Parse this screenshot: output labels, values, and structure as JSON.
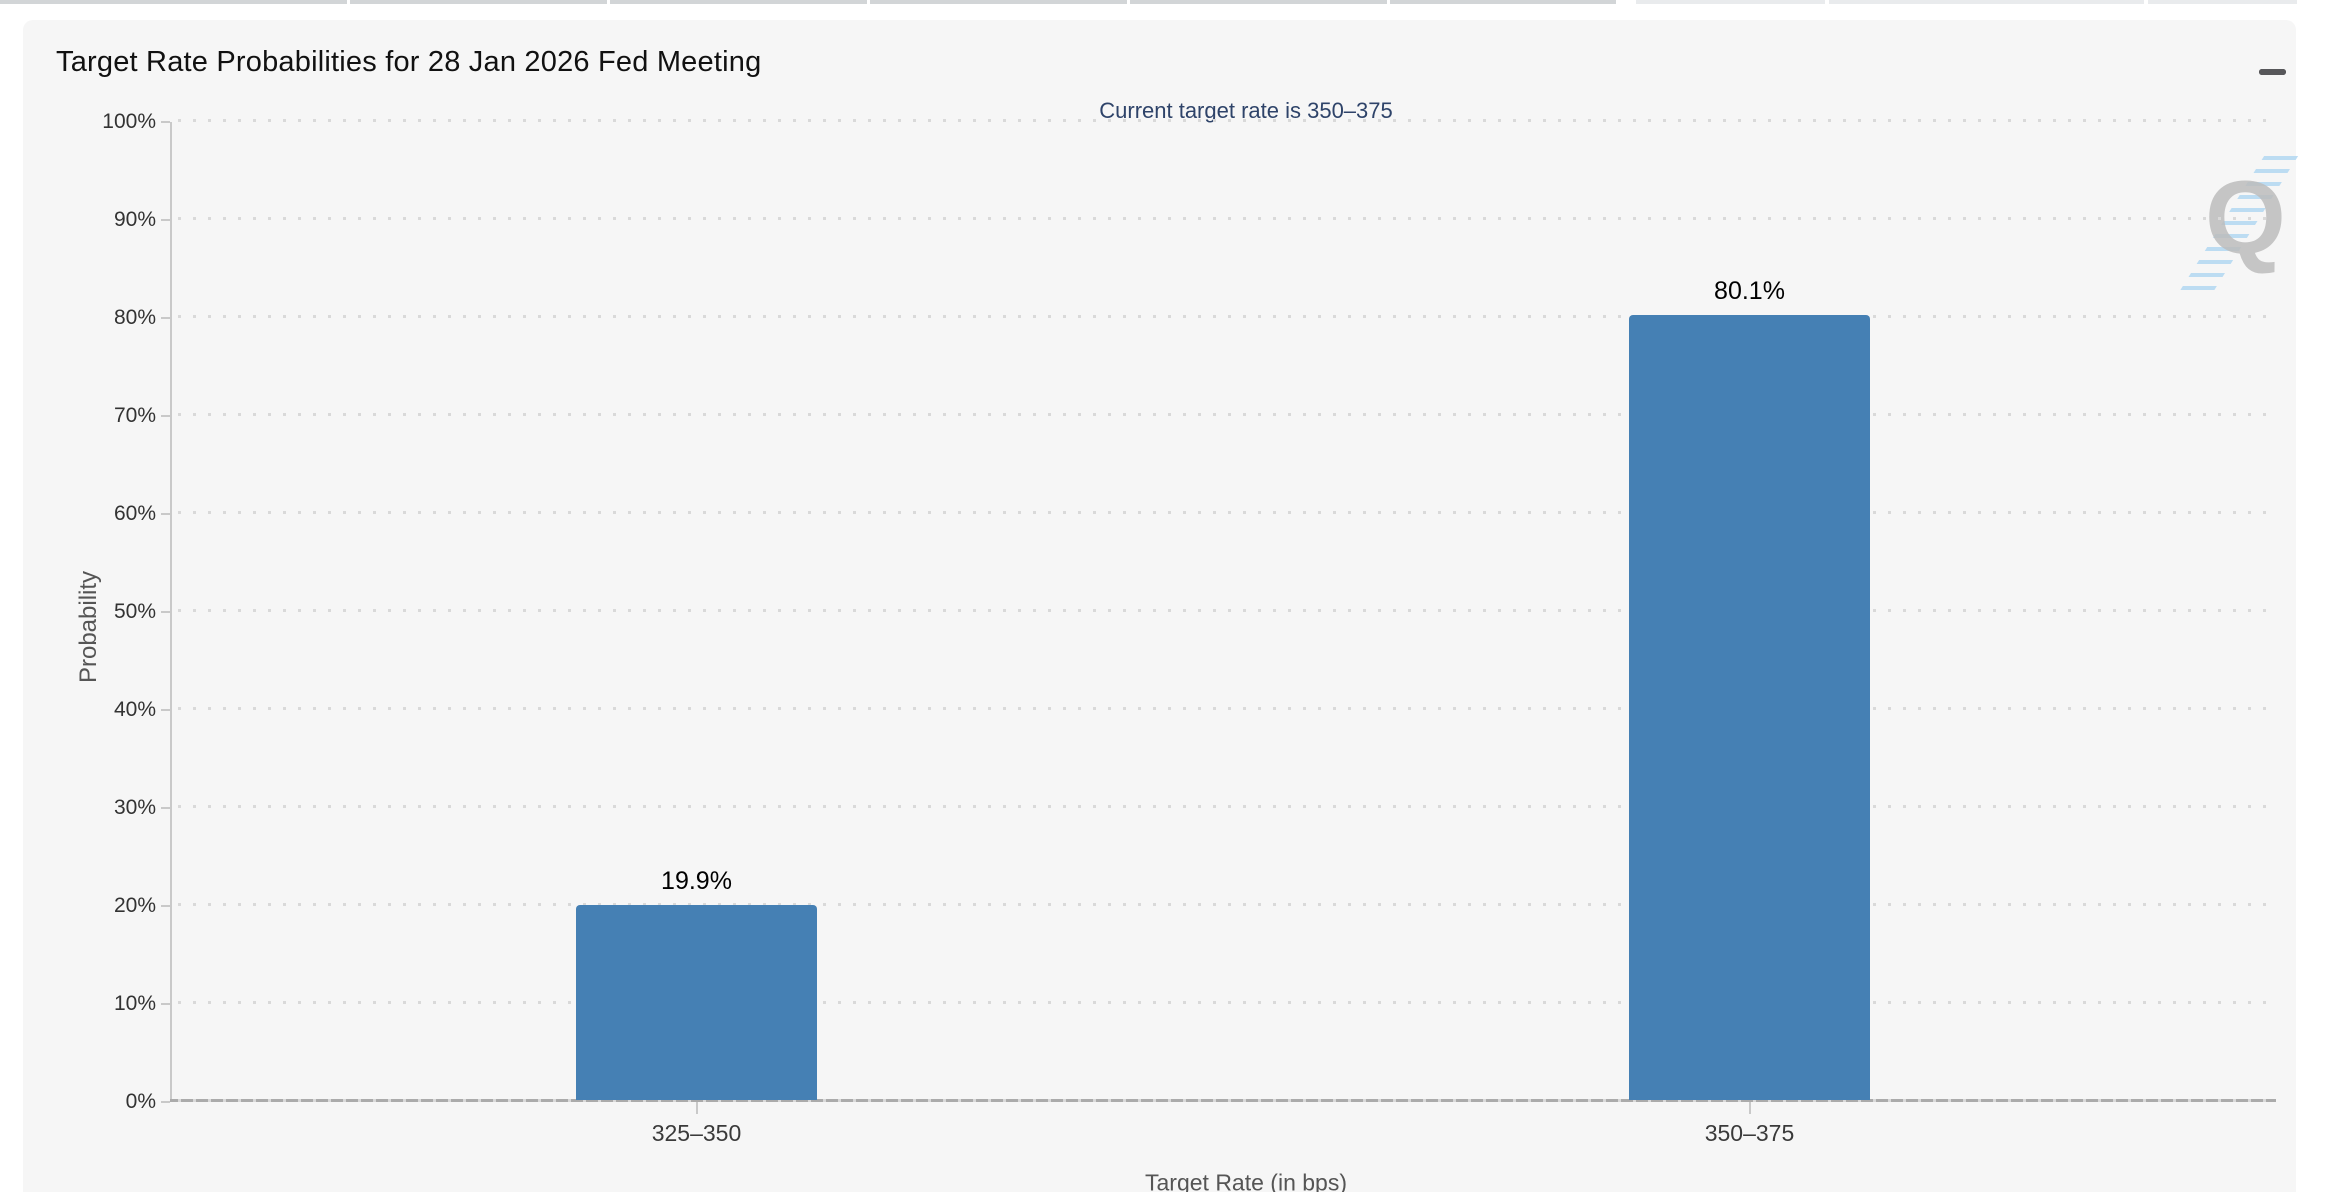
{
  "chart": {
    "title": "Target Rate Probabilities for 28 Jan 2026 Fed Meeting",
    "subtitle": "Current target rate is 350–375",
    "menu_icon": "hamburger-icon",
    "watermark_letter": "Q"
  },
  "chart_data": {
    "type": "bar",
    "title": "Target Rate Probabilities for 28 Jan 2026 Fed Meeting",
    "subtitle": "Current target rate is 350–375",
    "categories": [
      "325–350",
      "350–375"
    ],
    "values": [
      19.9,
      80.1
    ],
    "value_labels": [
      "19.9%",
      "80.1%"
    ],
    "xlabel": "Target Rate (in bps)",
    "ylabel": "Probability",
    "ylim": [
      0,
      100
    ],
    "ytick_step": 10,
    "ytick_labels": [
      "0%",
      "10%",
      "20%",
      "30%",
      "40%",
      "50%",
      "60%",
      "70%",
      "80%",
      "90%",
      "100%"
    ],
    "grid": "dotted-horizontal",
    "legend": "none",
    "bar_color": "#4580b4"
  },
  "colors": {
    "bar": "#4580b4",
    "title_text": "#111111",
    "subtitle_text": "#2e4369",
    "card_background": "#f6f6f6",
    "grid_dot": "#d9d9d9",
    "axis_line": "#ababab",
    "axis_secondary": "#c9c9c9",
    "tick_label": "#333333",
    "axis_title": "#555555",
    "menu_icon": "#57575a",
    "watermark_gray": "#bdbdbd",
    "watermark_blue": "#b5d9f2",
    "tab_strip_left": "#d2d5d7",
    "tab_strip_right": "#e9ebed"
  }
}
